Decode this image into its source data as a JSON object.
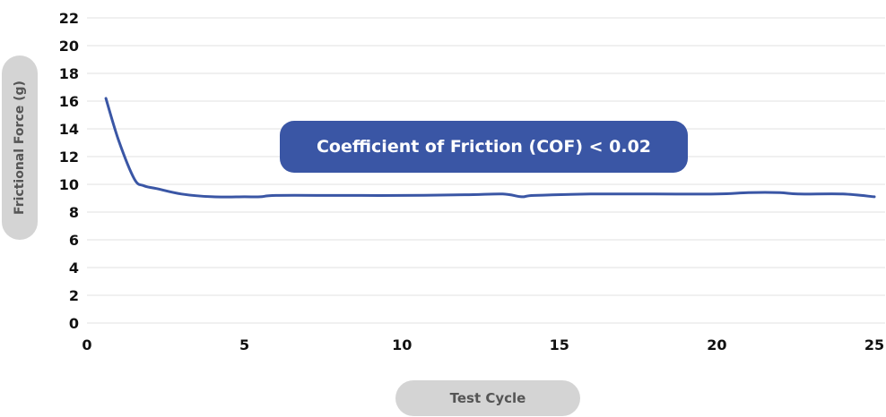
{
  "chart_data": {
    "type": "line",
    "title": "",
    "xlabel": "Test Cycle",
    "ylabel": "Frictional Force (g)",
    "annotation": "Coefficient of Friction (COF) < 0.02",
    "xlim": [
      0,
      25
    ],
    "ylim": [
      0,
      22
    ],
    "x_ticks": [
      0,
      5,
      10,
      15,
      20,
      25
    ],
    "y_ticks": [
      0,
      2,
      4,
      6,
      8,
      10,
      12,
      14,
      16,
      18,
      20,
      22
    ],
    "grid": "horizontal",
    "colors": {
      "line": "#3a56a5",
      "grid": "#e2e2e2",
      "annotation_bg": "#3a56a5",
      "label_pill": "#d4d4d4"
    },
    "series": [
      {
        "x": [
          0.6,
          1.0,
          1.5,
          1.8,
          2.2,
          3.0,
          4.0,
          5.0,
          5.5,
          6.0,
          8.0,
          10.0,
          12.0,
          13.2,
          13.8,
          14.2,
          16.0,
          18.0,
          20.0,
          21.0,
          22.0,
          22.6,
          24.0,
          25.0
        ],
        "y": [
          16.2,
          13.2,
          10.4,
          9.9,
          9.7,
          9.3,
          9.1,
          9.1,
          9.1,
          9.2,
          9.2,
          9.2,
          9.25,
          9.3,
          9.1,
          9.2,
          9.3,
          9.3,
          9.3,
          9.4,
          9.4,
          9.3,
          9.3,
          9.1
        ]
      }
    ]
  }
}
